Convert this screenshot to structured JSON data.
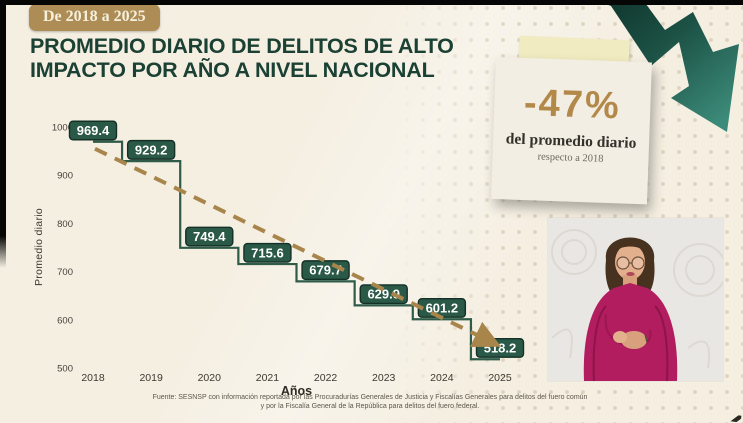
{
  "header": {
    "badge": "De 2018 a 2025",
    "title_line1": "PROMEDIO DIARIO DE DELITOS DE ALTO",
    "title_line2": "IMPACTO POR AÑO A NIVEL NACIONAL"
  },
  "chart_data": {
    "type": "line",
    "subtype": "step",
    "x": [
      2018,
      2019,
      2020,
      2021,
      2022,
      2023,
      2024,
      2025
    ],
    "values": [
      969.4,
      929.2,
      749.4,
      715.6,
      679.7,
      629.9,
      601.2,
      518.2
    ],
    "xlabel": "Años",
    "ylabel": "Promedio diario",
    "ylim": [
      500,
      1000
    ],
    "yticks": [
      1000,
      900,
      800,
      700,
      600,
      500
    ],
    "grid": false,
    "legend": false,
    "trend_line": {
      "style": "dashed",
      "arrow": true,
      "direction": "descending"
    },
    "colors": {
      "step_line": "#2f5b49",
      "value_label_bg": "#2b5948",
      "value_label_border": "#133127",
      "value_label_text": "#ffffff",
      "trend": "#a8854b",
      "tick_text": "#45413a",
      "axis_title": "#2e2b23"
    }
  },
  "callout": {
    "value": "-47%",
    "line1": "del promedio diario",
    "line2": "respecto a 2018"
  },
  "footer": {
    "source_line1": "Fuente: SESNSP con información reportada por las Procuradurías Generales de Justicia y Fiscalías Generales para delitos del fuero común",
    "source_line2": "y por la Fiscalía General de la República para delitos del fuero federal."
  },
  "icons": {
    "trend_arrow": "downward-zigzag-arrow",
    "interpreter": "sign-language-interpreter"
  },
  "colors": {
    "background": "#f5efe2",
    "accent_gold": "#ad8d55",
    "title_green": "#1b4134",
    "arrow_dark": "#123831",
    "arrow_light": "#3c8b7a",
    "card_bg": "#f2eee4",
    "tape": "#f1ebc1"
  }
}
